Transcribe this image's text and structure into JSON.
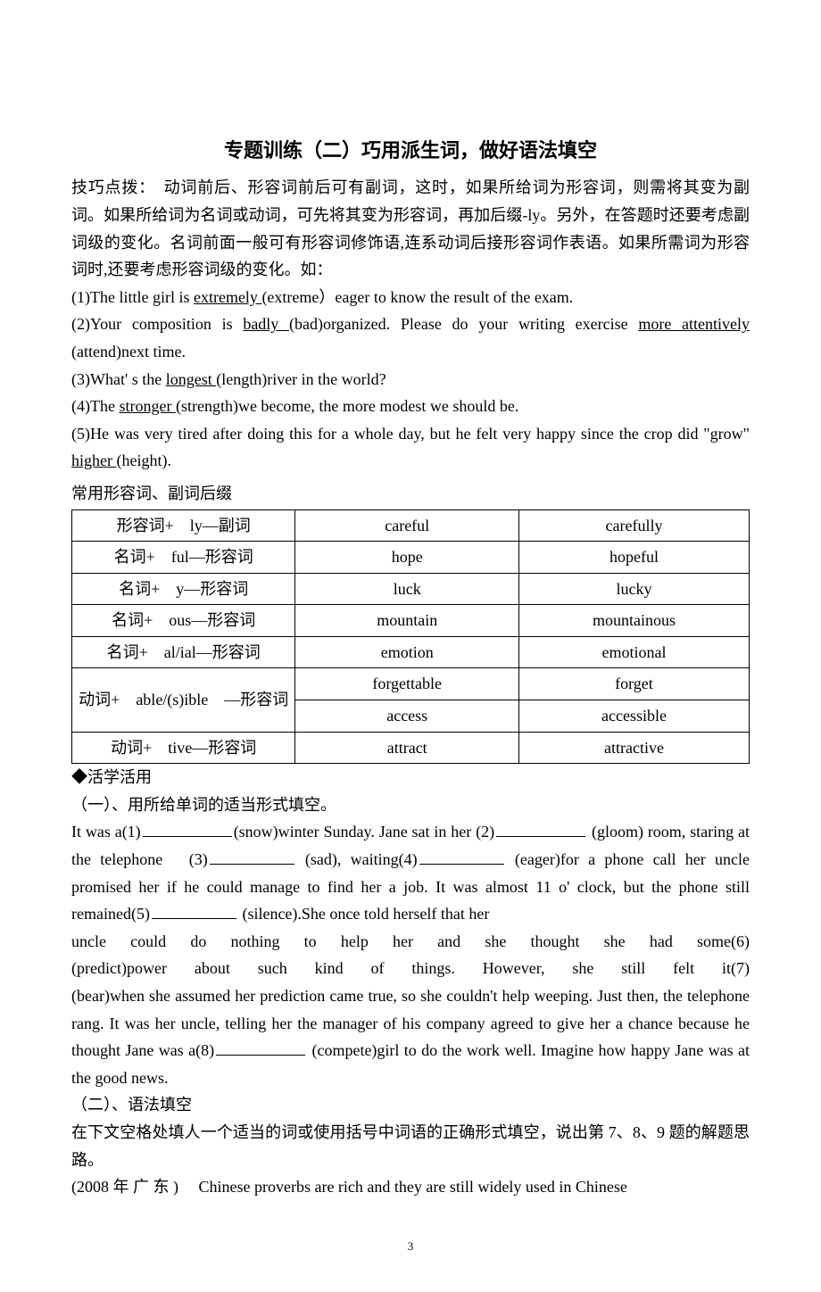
{
  "title": "专题训练（二）巧用派生词，做好语法填空",
  "intro_label": "技巧点拨：",
  "intro_text": "　动词前后、形容词前后可有副词，这时，如果所给词为形容词，则需将其变为副词。如果所给词为名词或动词，可先将其变为形容词，再加后缀-ly。另外，在答题时还要考虑副词级的变化。名词前面一般可有形容词修饰语,连系动词后接形容词作表语。如果所需词为形容词时,还要考虑形容词级的变化。如：",
  "ex": {
    "e1_a": "(1)The little girl is  ",
    "e1_u": "extremely ",
    "e1_b": "(extreme）eager to know the result of the exam.",
    "e2_a": "(2)Your composition is  ",
    "e2_u1": " badly ",
    "e2_b": "(bad)organized. Please do your writing exercise  ",
    "e2_u2": " more attentively ",
    "e2_c": "(attend)next time.",
    "e3_a": "(3)What' s the  ",
    "e3_u": "longest ",
    "e3_b": "  (length)river in the world?",
    "e4_a": "(4)The   ",
    "e4_u": "stronger  ",
    "e4_b": "(strength)we become, the more modest we should be.",
    "e5_a": "(5)He was very tired after doing this for a whole day, but he felt very happy since the crop did \"grow\" ",
    "e5_u": "higher ",
    "e5_b": "(height)."
  },
  "table_label": "常用形容词、副词后缀",
  "table": {
    "rows": [
      [
        "形容词+　ly—副词",
        "careful",
        "carefully"
      ],
      [
        "名词+　ful—形容词",
        "hope",
        "hopeful"
      ],
      [
        "名词+　y—形容词",
        "luck",
        "lucky"
      ],
      [
        "名词+　ous—形容词",
        "mountain",
        "mountainous"
      ],
      [
        "名词+　al/ial—形容词",
        "emotion",
        "emotional"
      ]
    ],
    "merged_left": "动词+　able/(s)ible　—形容词",
    "merged_r1": [
      "forgettable",
      "forget"
    ],
    "merged_r2": [
      "access",
      "accessible"
    ],
    "last": [
      "动词+　tive—形容词",
      "attract",
      "attractive"
    ]
  },
  "huoxue": "◆活学活用",
  "sec1_label": "（一）、用所给单词的适当形式填空。",
  "passage1": {
    "p1": "It was a(1)",
    "p2": "(snow)winter Sunday. Jane sat in her (2)",
    "p3": " (gloom)",
    "p4": "room, staring at the telephone　(3)",
    "p5": " (sad), waiting(4)",
    "p6": " (eager)for",
    "p7": "a phone call her uncle promised her if he could manage to find her a job. It was almost 11",
    "p8": "o' clock, but the phone still remained(5)",
    "p9": " (silence).She once told herself that her",
    "p10": "uncle  could  do  nothing  to  help  her  and  she  thought  she  had  some(6)",
    "p11a": "(predict)power   about   such   kind   of   things.   However,   she   still   felt   it(7)",
    "p12": "(bear)when she assumed her prediction came true, so she couldn't help weeping. Just then,",
    "p13": "the telephone rang. It was her uncle, telling her the manager of his company agreed to give",
    "p14a": "her a chance because he thought Jane was a(8)",
    "p14b": " (compete)girl to do the work",
    "p15": "well. Imagine how happy Jane was at the good news."
  },
  "sec2_label": "（二）、语法填空",
  "sec2_instr": "在下文空格处填人一个适当的词或使用括号中词语的正确形式填空，说出第 7、8、9 题的解题思路。",
  "passage2_a": "(2008 年 广 东 )　 Chinese proverbs are rich and they are still widely used in Chinese",
  "page_number": "3"
}
